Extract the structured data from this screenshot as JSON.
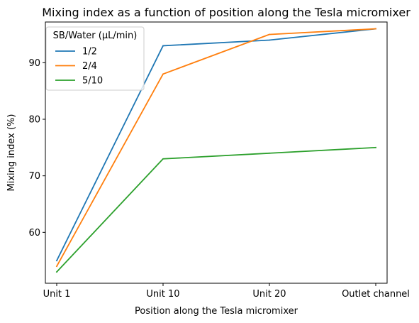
{
  "chart_data": {
    "type": "line",
    "title": "Mixing index as a function of position along the Tesla micromixer",
    "xlabel": "Position along the Tesla micromixer",
    "ylabel": "Mixing index (%)",
    "categories": [
      "Unit 1",
      "Unit 10",
      "Unit 20",
      "Outlet channel"
    ],
    "ylim": [
      51,
      97.2
    ],
    "yticks": [
      60,
      70,
      80,
      90
    ],
    "grid": false,
    "legend": {
      "title": "SB/Water (µL/min)",
      "placement": "top-left"
    },
    "series": [
      {
        "name": "1/2",
        "color": "#1f77b4",
        "values": [
          55,
          93,
          94,
          96
        ]
      },
      {
        "name": "2/4",
        "color": "#ff7f0e",
        "values": [
          54,
          88,
          95,
          96
        ]
      },
      {
        "name": "5/10",
        "color": "#2ca02c",
        "values": [
          53,
          73,
          74,
          75
        ]
      }
    ]
  }
}
